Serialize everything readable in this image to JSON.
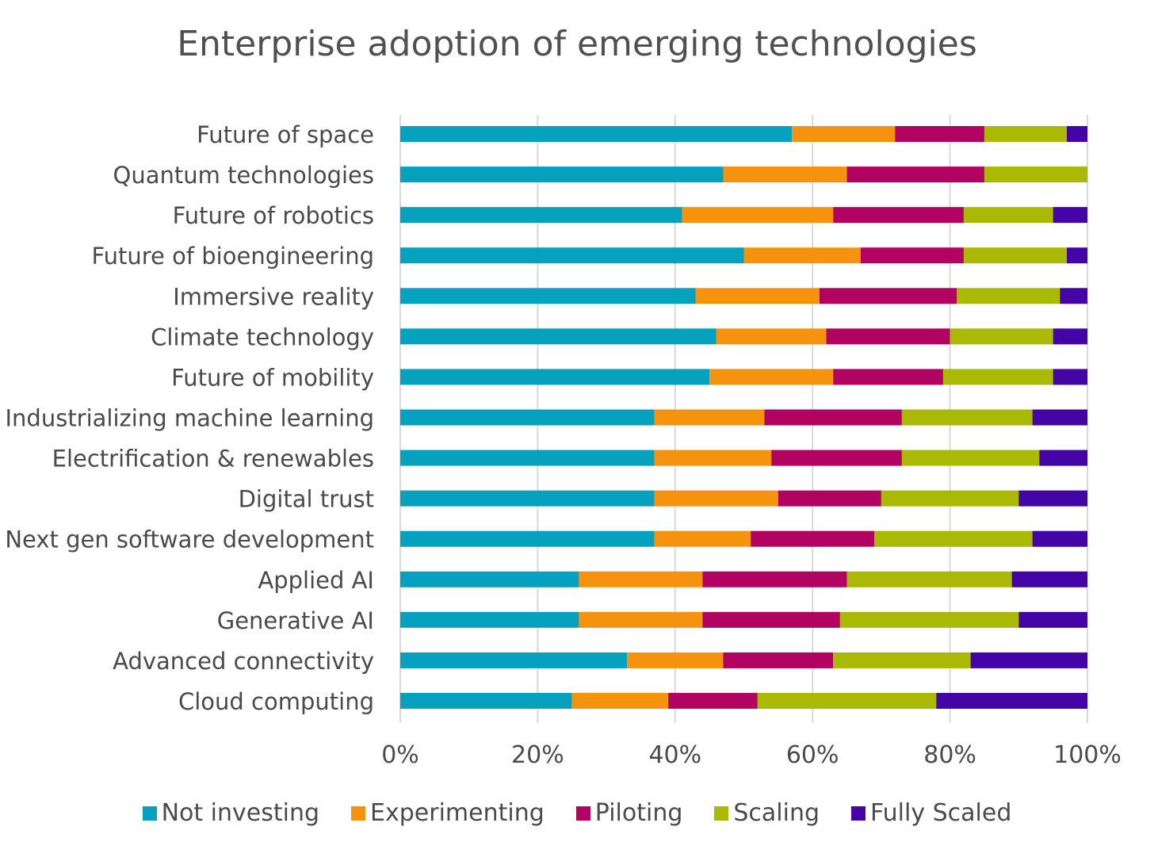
{
  "chart_data": {
    "type": "bar",
    "orientation": "horizontal",
    "stacked": true,
    "title": "Enterprise adoption of emerging technologies",
    "categories": [
      "Future of space",
      "Quantum technologies",
      "Future of robotics",
      "Future of bioengineering",
      "Immersive reality",
      "Climate technology",
      "Future of mobility",
      "Industrializing machine learning",
      "Electrification & renewables",
      "Digital trust",
      "Next gen software development",
      "Applied AI",
      "Generative AI",
      "Advanced connectivity",
      "Cloud computing"
    ],
    "series": [
      {
        "name": "Not investing",
        "color": "#06a1bf",
        "values": [
          57,
          47,
          41,
          50,
          43,
          46,
          45,
          37,
          37,
          37,
          37,
          26,
          26,
          33,
          25
        ]
      },
      {
        "name": "Experimenting",
        "color": "#f6930e",
        "values": [
          15,
          18,
          22,
          17,
          18,
          16,
          18,
          16,
          17,
          18,
          14,
          18,
          18,
          14,
          14
        ]
      },
      {
        "name": "Piloting",
        "color": "#b20262",
        "values": [
          13,
          20,
          19,
          15,
          20,
          18,
          16,
          20,
          19,
          15,
          18,
          21,
          20,
          16,
          13
        ]
      },
      {
        "name": "Scaling",
        "color": "#aab903",
        "values": [
          12,
          15,
          13,
          15,
          15,
          15,
          16,
          19,
          20,
          20,
          23,
          24,
          26,
          20,
          26
        ]
      },
      {
        "name": "Fully Scaled",
        "color": "#4505a6",
        "values": [
          3,
          0,
          5,
          3,
          4,
          5,
          5,
          8,
          7,
          10,
          8,
          11,
          10,
          17,
          22
        ]
      }
    ],
    "x_ticks": [
      "0%",
      "20%",
      "40%",
      "60%",
      "80%",
      "100%"
    ],
    "xlim": [
      0,
      100
    ],
    "grid": true,
    "legend_position": "bottom"
  }
}
